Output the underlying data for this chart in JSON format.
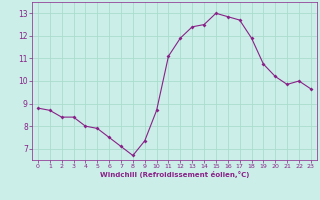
{
  "x": [
    0,
    1,
    2,
    3,
    4,
    5,
    6,
    7,
    8,
    9,
    10,
    11,
    12,
    13,
    14,
    15,
    16,
    17,
    18,
    19,
    20,
    21,
    22,
    23
  ],
  "y": [
    8.8,
    8.7,
    8.4,
    8.4,
    8.0,
    7.9,
    7.5,
    7.1,
    6.7,
    7.35,
    8.7,
    11.1,
    11.9,
    12.4,
    12.5,
    13.0,
    12.85,
    12.7,
    11.9,
    10.75,
    10.2,
    9.85,
    10.0,
    9.65
  ],
  "line_color": "#882288",
  "marker": "D",
  "marker_size": 2,
  "bg_color": "#cceee8",
  "grid_color": "#aaddcc",
  "xlabel": "Windchill (Refroidissement éolien,°C)",
  "xlabel_color": "#882288",
  "tick_color": "#882288",
  "ylim": [
    6.5,
    13.5
  ],
  "xlim": [
    -0.5,
    23.5
  ],
  "yticks": [
    7,
    8,
    9,
    10,
    11,
    12,
    13
  ],
  "xticks": [
    0,
    1,
    2,
    3,
    4,
    5,
    6,
    7,
    8,
    9,
    10,
    11,
    12,
    13,
    14,
    15,
    16,
    17,
    18,
    19,
    20,
    21,
    22,
    23
  ]
}
